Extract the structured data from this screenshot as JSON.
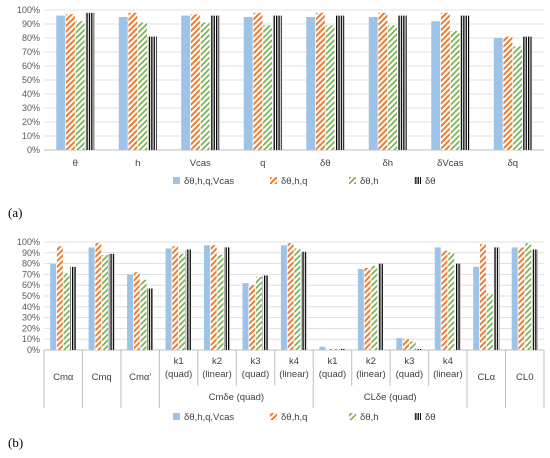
{
  "panel_labels": {
    "a": "(a)",
    "b": "(b)"
  },
  "colors": {
    "s1": "#9dc3e6",
    "s2": "#ed7d31",
    "s3": "#70ad47",
    "s4": "#000000",
    "grid": "#d9d9d9",
    "axis": "#bfbfbf"
  },
  "series_patterns": [
    "solid",
    "diag-wide",
    "diag-green",
    "vertical"
  ],
  "chart_data": [
    {
      "type": "bar",
      "title": "",
      "xlabel": "",
      "ylabel": "",
      "ylim": [
        0,
        100
      ],
      "ytick_step": 10,
      "ytick_labels": [
        "0%",
        "10%",
        "20%",
        "30%",
        "40%",
        "50%",
        "60%",
        "70%",
        "80%",
        "90%",
        "100%"
      ],
      "grid": true,
      "legend_position": "bottom",
      "categories": [
        "θ",
        "h",
        "Vcas",
        "q",
        "δθ",
        "δh",
        "δVcas",
        "δq"
      ],
      "series": [
        {
          "name": "δθ,h,q,Vcas",
          "values": [
            96,
            95,
            96,
            95,
            95,
            95,
            92,
            80
          ]
        },
        {
          "name": "δθ,h,q",
          "values": [
            97,
            98,
            97,
            98,
            98,
            98,
            98,
            81
          ]
        },
        {
          "name": "δθ,h",
          "values": [
            92,
            91,
            91,
            89,
            89,
            89,
            85,
            74
          ]
        },
        {
          "name": "δθ",
          "values": [
            98,
            81,
            96,
            96,
            96,
            96,
            96,
            81
          ]
        }
      ]
    },
    {
      "type": "bar",
      "title": "",
      "xlabel": "",
      "ylabel": "",
      "ylim": [
        0,
        100
      ],
      "ytick_step": 10,
      "ytick_labels": [
        "0%",
        "10%",
        "20%",
        "30%",
        "40%",
        "50%",
        "60%",
        "70%",
        "80%",
        "90%",
        "100%"
      ],
      "grid": true,
      "legend_position": "bottom",
      "categories": [
        "Cmα",
        "Cmq",
        "Cmα'",
        "k1 (quad)",
        "k2 (linear)",
        "k3 (quad)",
        "k4 (linear)",
        "k1 (quad)",
        "k2 (linear)",
        "k3 (quad)",
        "k4 (linear)",
        "CLα",
        "CL0"
      ],
      "category_lines": [
        [
          "",
          ""
        ],
        [
          "",
          ""
        ],
        [
          "",
          ""
        ],
        [
          "k1",
          "(quad)"
        ],
        [
          "k2",
          "(linear)"
        ],
        [
          "k3",
          "(quad)"
        ],
        [
          "k4",
          "(linear)"
        ],
        [
          "k1",
          "(quad)"
        ],
        [
          "k2",
          "(linear)"
        ],
        [
          "k3",
          "(quad)"
        ],
        [
          "k4",
          "(linear)"
        ],
        [
          "",
          ""
        ],
        [
          "",
          ""
        ]
      ],
      "groups": [
        {
          "label": "Cmα",
          "start": 0,
          "count": 1
        },
        {
          "label": "Cmq",
          "start": 1,
          "count": 1
        },
        {
          "label": "Cmα'",
          "start": 2,
          "count": 1
        },
        {
          "label": "Cmδe (quad)",
          "start": 3,
          "count": 4
        },
        {
          "label": "CLδe (quad)",
          "start": 7,
          "count": 4
        },
        {
          "label": "CLα",
          "start": 11,
          "count": 1
        },
        {
          "label": "CL0",
          "start": 12,
          "count": 1
        }
      ],
      "series": [
        {
          "name": "δθ,h,q,Vcas",
          "values": [
            80,
            95,
            70,
            94,
            97,
            62,
            97,
            3,
            75,
            11,
            95,
            77,
            95
          ]
        },
        {
          "name": "δθ,h,q",
          "values": [
            96,
            99,
            72,
            96,
            97,
            60,
            99,
            1,
            76,
            10,
            92,
            98,
            95
          ]
        },
        {
          "name": "δθ,h",
          "values": [
            71,
            88,
            65,
            89,
            88,
            68,
            94,
            1,
            78,
            8,
            90,
            52,
            99
          ]
        },
        {
          "name": "δθ",
          "values": [
            77,
            89,
            57,
            93,
            95,
            69,
            91,
            1,
            80,
            1,
            80,
            95,
            93
          ]
        }
      ]
    }
  ]
}
